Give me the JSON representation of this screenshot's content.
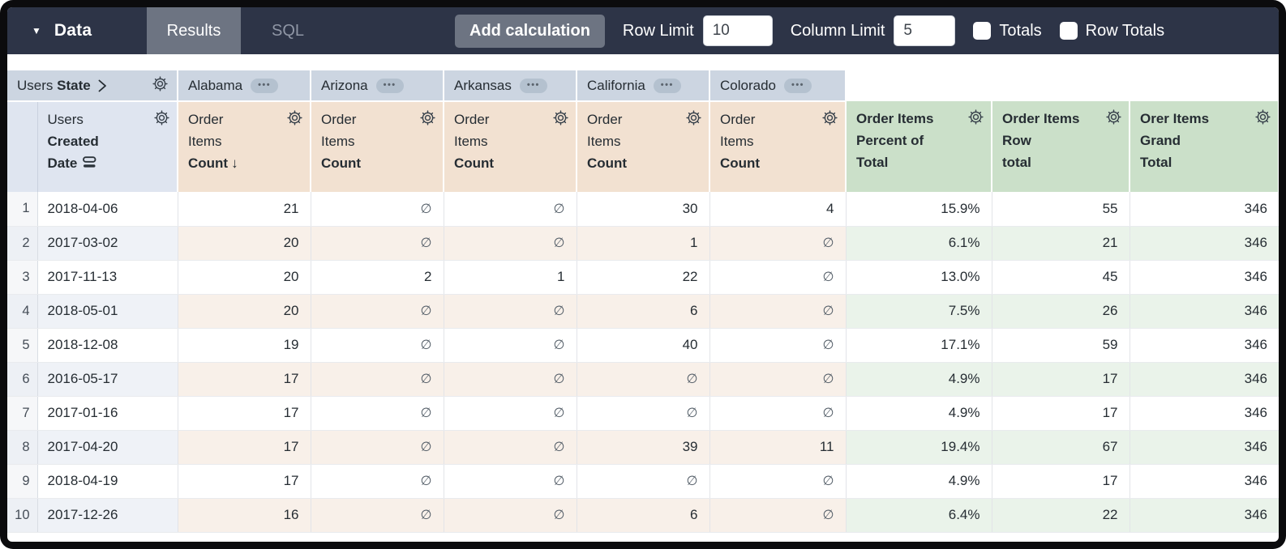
{
  "toolbar": {
    "data_label": "Data",
    "tabs": [
      {
        "label": "Results",
        "active": true
      },
      {
        "label": "SQL",
        "active": false
      }
    ],
    "add_calculation_label": "Add calculation",
    "row_limit": {
      "label": "Row Limit",
      "value": "10"
    },
    "column_limit": {
      "label": "Column Limit",
      "value": "5"
    },
    "totals": {
      "label": "Totals",
      "checked": false
    },
    "row_totals": {
      "label": "Row Totals",
      "checked": false
    },
    "colors": {
      "topbar_bg": "#2d3447",
      "tab_active_bg": "#6d7482"
    }
  },
  "table": {
    "corner": {
      "view": "Users",
      "field": "State"
    },
    "pivots": [
      "Alabama",
      "Arizona",
      "Arkansas",
      "California",
      "Colorado"
    ],
    "dimension": {
      "view": "Users",
      "field_lines": "Created\nDate"
    },
    "measures": [
      {
        "view_lines": "Order\nItems",
        "field": "Count",
        "sort_arrow": "↓"
      },
      {
        "view_lines": "Order\nItems",
        "field": "Count"
      },
      {
        "view_lines": "Order\nItems",
        "field": "Count"
      },
      {
        "view_lines": "Order\nItems",
        "field": "Count"
      },
      {
        "view_lines": "Order\nItems",
        "field": "Count"
      }
    ],
    "calcs": [
      {
        "label_lines": "Order Items\nPercent of\nTotal"
      },
      {
        "label_lines": "Order Items\nRow\ntotal"
      },
      {
        "label_lines": "Orer Items\nGrand\nTotal"
      }
    ],
    "null_symbol": "∅",
    "ellipsis": "•••",
    "rows": [
      {
        "num": "1",
        "date": "2018-04-06",
        "cells": [
          "21",
          "∅",
          "∅",
          "30",
          "4",
          "15.9%",
          "55",
          "346"
        ]
      },
      {
        "num": "2",
        "date": "2017-03-02",
        "cells": [
          "20",
          "∅",
          "∅",
          "1",
          "∅",
          "6.1%",
          "21",
          "346"
        ]
      },
      {
        "num": "3",
        "date": "2017-11-13",
        "cells": [
          "20",
          "2",
          "1",
          "22",
          "∅",
          "13.0%",
          "45",
          "346"
        ]
      },
      {
        "num": "4",
        "date": "2018-05-01",
        "cells": [
          "20",
          "∅",
          "∅",
          "6",
          "∅",
          "7.5%",
          "26",
          "346"
        ]
      },
      {
        "num": "5",
        "date": "2018-12-08",
        "cells": [
          "19",
          "∅",
          "∅",
          "40",
          "∅",
          "17.1%",
          "59",
          "346"
        ]
      },
      {
        "num": "6",
        "date": "2016-05-17",
        "cells": [
          "17",
          "∅",
          "∅",
          "∅",
          "∅",
          "4.9%",
          "17",
          "346"
        ]
      },
      {
        "num": "7",
        "date": "2017-01-16",
        "cells": [
          "17",
          "∅",
          "∅",
          "∅",
          "∅",
          "4.9%",
          "17",
          "346"
        ]
      },
      {
        "num": "8",
        "date": "2017-04-20",
        "cells": [
          "17",
          "∅",
          "∅",
          "39",
          "11",
          "19.4%",
          "67",
          "346"
        ]
      },
      {
        "num": "9",
        "date": "2018-04-19",
        "cells": [
          "17",
          "∅",
          "∅",
          "∅",
          "∅",
          "4.9%",
          "17",
          "346"
        ]
      },
      {
        "num": "10",
        "date": "2017-12-26",
        "cells": [
          "16",
          "∅",
          "∅",
          "6",
          "∅",
          "6.4%",
          "22",
          "346"
        ]
      }
    ],
    "header_colors": {
      "pivot_bg": "#ccd5e1",
      "dimension_bg": "#dfe5f0",
      "measure_bg": "#f2e1d1",
      "calc_bg": "#cbe0c9"
    }
  }
}
